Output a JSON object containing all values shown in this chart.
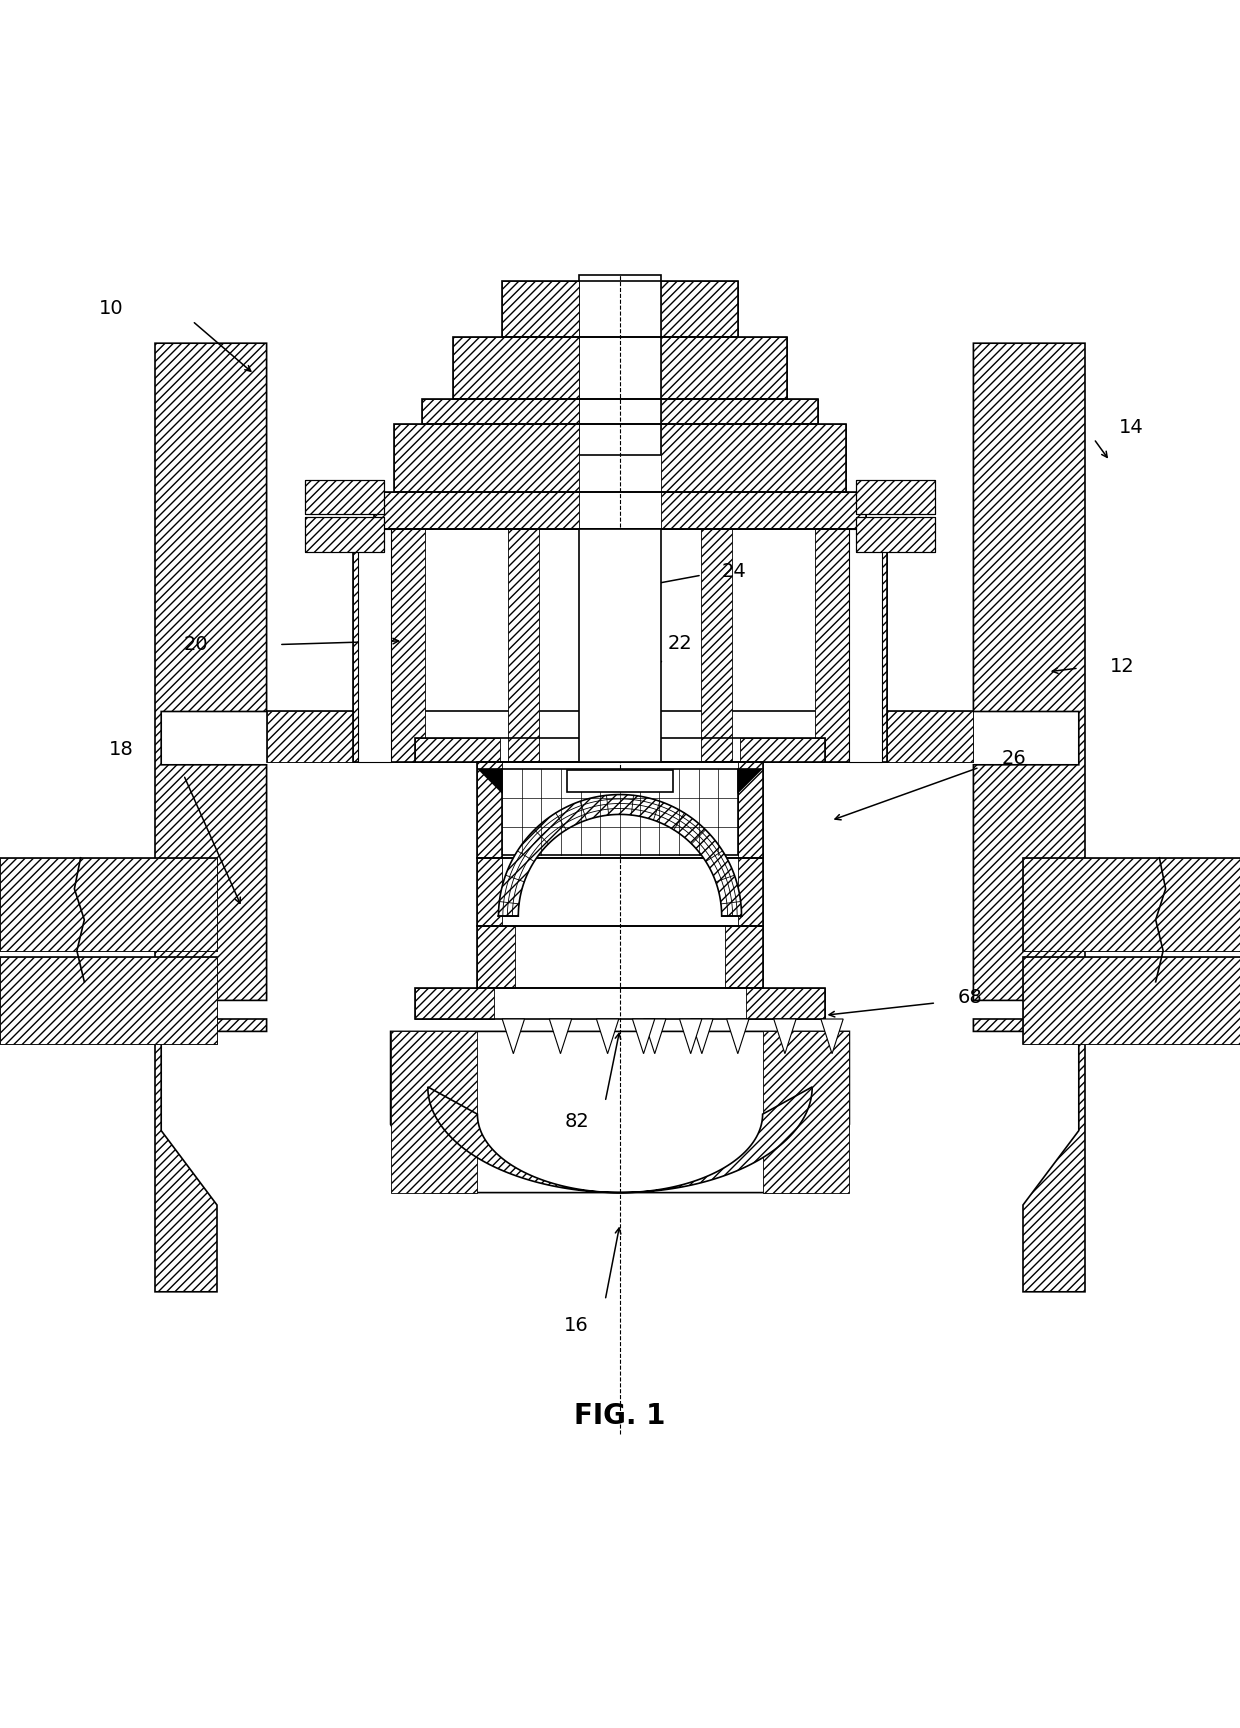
{
  "title": "FIG. 1",
  "title_fontsize": 20,
  "title_fontweight": "bold",
  "background_color": "#ffffff",
  "line_color": "#000000",
  "hatch_pattern": "////",
  "fig_width": 12.4,
  "fig_height": 17.28
}
